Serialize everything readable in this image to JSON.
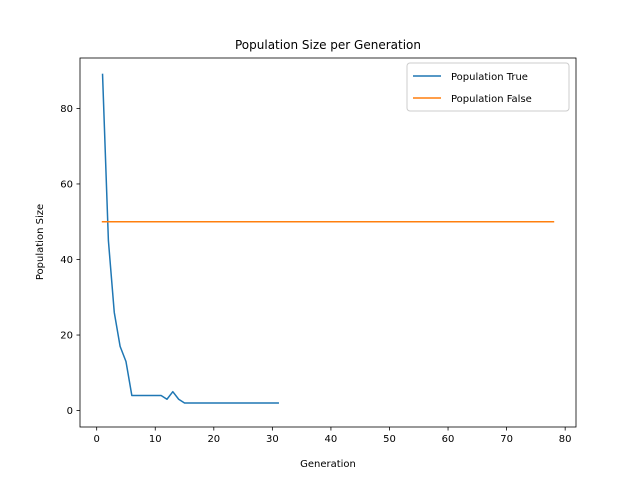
{
  "chart_data": {
    "type": "line",
    "title": "Population Size per Generation",
    "xlabel": "Generation",
    "ylabel": "Population Size",
    "xlim": [
      -2.85,
      81.85
    ],
    "ylim": [
      -4.35,
      93.35
    ],
    "xticks": [
      0,
      10,
      20,
      30,
      40,
      50,
      60,
      70,
      80
    ],
    "yticks": [
      0,
      20,
      40,
      60,
      80
    ],
    "grid": false,
    "legend_position": "top-right",
    "series": [
      {
        "name": "Population True",
        "color": "#1f77b4",
        "x": [
          1,
          2,
          3,
          4,
          5,
          6,
          7,
          8,
          9,
          10,
          11,
          12,
          13,
          14,
          15,
          16,
          17,
          18,
          19,
          20,
          21,
          22,
          23,
          24,
          25,
          26,
          27,
          28,
          29,
          30,
          31
        ],
        "y": [
          89,
          45,
          26,
          17,
          13,
          4,
          4,
          4,
          4,
          4,
          4,
          3,
          5,
          3,
          2,
          2,
          2,
          2,
          2,
          2,
          2,
          2,
          2,
          2,
          2,
          2,
          2,
          2,
          2,
          2,
          2
        ]
      },
      {
        "name": "Population False",
        "color": "#ff7f0e",
        "x": [
          1,
          78
        ],
        "y": [
          50,
          50
        ]
      }
    ]
  }
}
